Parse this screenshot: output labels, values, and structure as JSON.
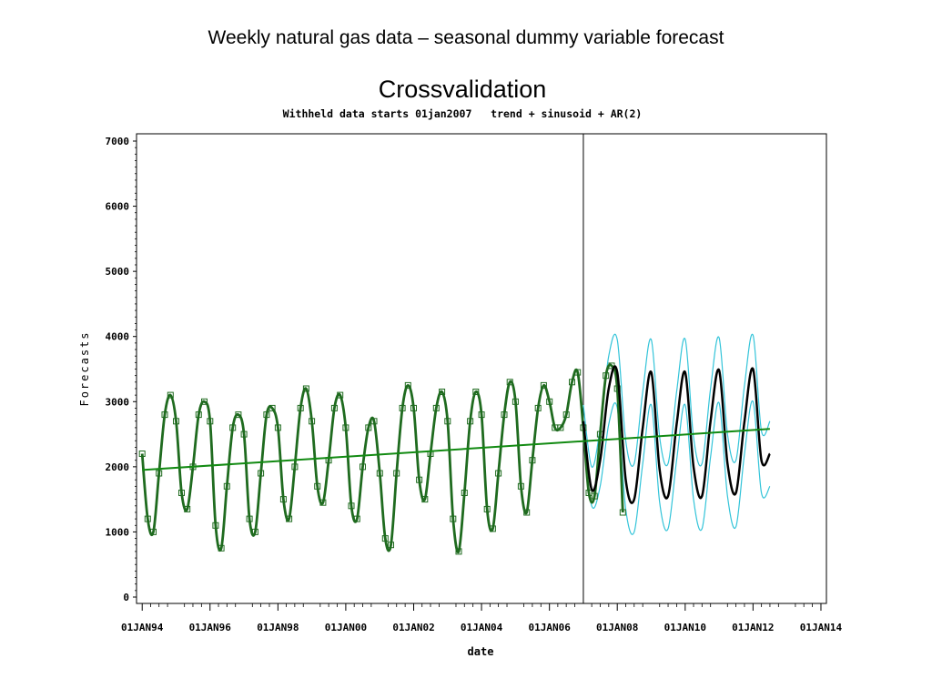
{
  "slide_title": "Weekly natural gas data – seasonal dummy variable forecast",
  "chart_data": {
    "type": "line",
    "title": "Crossvalidation",
    "subtitle": "Withheld data starts 01jan2007   trend + sinusoid + AR(2)",
    "xlabel": "date",
    "ylabel": "Forecasts",
    "x_ticks": [
      "01JAN94",
      "01JAN96",
      "01JAN98",
      "01JAN00",
      "01JAN02",
      "01JAN04",
      "01JAN06",
      "01JAN08",
      "01JAN10",
      "01JAN12",
      "01JAN14"
    ],
    "y_ticks": [
      0,
      1000,
      2000,
      3000,
      4000,
      5000,
      6000,
      7000
    ],
    "xlim": [
      "1993-11-01",
      "2014-03-01"
    ],
    "ylim": [
      0,
      7000
    ],
    "grid": false,
    "reference_line_x": "2007-01-01",
    "series": [
      {
        "role": "observed",
        "marker": "square",
        "color": "#1f6b1f",
        "x": [
          "1994-01-01",
          "1994-03-01",
          "1994-05-01",
          "1994-07-01",
          "1994-09-01",
          "1994-11-01",
          "1995-01-01",
          "1995-03-01",
          "1995-05-01",
          "1995-07-01",
          "1995-09-01",
          "1995-11-01",
          "1996-01-01",
          "1996-03-01",
          "1996-05-01",
          "1996-07-01",
          "1996-09-01",
          "1996-11-01",
          "1997-01-01",
          "1997-03-01",
          "1997-05-01",
          "1997-07-01",
          "1997-09-01",
          "1997-11-01",
          "1998-01-01",
          "1998-03-01",
          "1998-05-01",
          "1998-07-01",
          "1998-09-01",
          "1998-11-01",
          "1999-01-01",
          "1999-03-01",
          "1999-05-01",
          "1999-07-01",
          "1999-09-01",
          "1999-11-01",
          "2000-01-01",
          "2000-03-01",
          "2000-05-01",
          "2000-07-01",
          "2000-09-01",
          "2000-11-01",
          "2001-01-01",
          "2001-03-01",
          "2001-05-01",
          "2001-07-01",
          "2001-09-01",
          "2001-11-01",
          "2002-01-01",
          "2002-03-01",
          "2002-05-01",
          "2002-07-01",
          "2002-09-01",
          "2002-11-01",
          "2003-01-01",
          "2003-03-01",
          "2003-05-01",
          "2003-07-01",
          "2003-09-01",
          "2003-11-01",
          "2004-01-01",
          "2004-03-01",
          "2004-05-01",
          "2004-07-01",
          "2004-09-01",
          "2004-11-01",
          "2005-01-01",
          "2005-03-01",
          "2005-05-01",
          "2005-07-01",
          "2005-09-01",
          "2005-11-01",
          "2006-01-01",
          "2006-03-01",
          "2006-05-01",
          "2006-07-01",
          "2006-09-01",
          "2006-11-01",
          "2007-01-01",
          "2007-03-01",
          "2007-05-01",
          "2007-07-01",
          "2007-09-01",
          "2007-11-01",
          "2008-01-01",
          "2008-03-01"
        ],
        "y": [
          2200,
          1200,
          1000,
          1900,
          2800,
          3100,
          2700,
          1600,
          1350,
          2000,
          2800,
          3000,
          2700,
          1100,
          750,
          1700,
          2600,
          2800,
          2500,
          1200,
          1000,
          1900,
          2800,
          2900,
          2600,
          1500,
          1200,
          2000,
          2900,
          3200,
          2700,
          1700,
          1450,
          2100,
          2900,
          3100,
          2600,
          1400,
          1200,
          2000,
          2600,
          2700,
          1900,
          900,
          800,
          1900,
          2900,
          3250,
          2900,
          1800,
          1500,
          2200,
          2900,
          3150,
          2700,
          1200,
          700,
          1600,
          2700,
          3150,
          2800,
          1350,
          1050,
          1900,
          2800,
          3300,
          3000,
          1700,
          1300,
          2100,
          2900,
          3250,
          3000,
          2600,
          2600,
          2800,
          3300,
          3450,
          2600,
          1600,
          1550,
          2500,
          3400,
          3550,
          3200,
          1300
        ]
      },
      {
        "role": "trend",
        "color": "#128a12",
        "x": [
          "1994-01-01",
          "2012-07-01"
        ],
        "y": [
          1950,
          2580
        ]
      },
      {
        "role": "forecast",
        "color": "#000000",
        "x": [
          "2007-01-01",
          "2007-04-01",
          "2007-07-01",
          "2007-10-01",
          "2008-01-01",
          "2008-04-01",
          "2008-07-01",
          "2008-10-01",
          "2009-01-01",
          "2009-04-01",
          "2009-07-01",
          "2009-10-01",
          "2010-01-01",
          "2010-04-01",
          "2010-07-01",
          "2010-10-01",
          "2011-01-01",
          "2011-04-01",
          "2011-07-01",
          "2011-10-01",
          "2012-01-01",
          "2012-04-01",
          "2012-07-01"
        ],
        "y": [
          2700,
          1650,
          2100,
          3200,
          3450,
          1800,
          1500,
          2600,
          3450,
          1950,
          1550,
          2650,
          3450,
          2000,
          1550,
          2700,
          3480,
          2050,
          1600,
          2700,
          3500,
          2100,
          2200
        ]
      },
      {
        "role": "upper-limit",
        "color": "#33c4d9",
        "x": [
          "2007-01-01",
          "2007-04-01",
          "2007-07-01",
          "2007-10-01",
          "2008-01-01",
          "2008-04-01",
          "2008-07-01",
          "2008-10-01",
          "2009-01-01",
          "2009-04-01",
          "2009-07-01",
          "2009-10-01",
          "2010-01-01",
          "2010-04-01",
          "2010-07-01",
          "2010-10-01",
          "2011-01-01",
          "2011-04-01",
          "2011-07-01",
          "2011-10-01",
          "2012-01-01",
          "2012-04-01",
          "2012-07-01"
        ],
        "y": [
          2950,
          2000,
          2600,
          3700,
          3950,
          2400,
          2050,
          3150,
          3950,
          2450,
          2050,
          3150,
          3960,
          2450,
          2050,
          3200,
          3980,
          2500,
          2100,
          3250,
          4020,
          2550,
          2700
        ]
      },
      {
        "role": "lower-limit",
        "color": "#33c4d9",
        "x": [
          "2007-01-01",
          "2007-04-01",
          "2007-07-01",
          "2007-10-01",
          "2008-01-01",
          "2008-04-01",
          "2008-07-01",
          "2008-10-01",
          "2009-01-01",
          "2009-04-01",
          "2009-07-01",
          "2009-10-01",
          "2010-01-01",
          "2010-04-01",
          "2010-07-01",
          "2010-10-01",
          "2011-01-01",
          "2011-04-01",
          "2011-07-01",
          "2011-10-01",
          "2012-01-01",
          "2012-04-01",
          "2012-07-01"
        ],
        "y": [
          2450,
          1400,
          1700,
          2650,
          2900,
          1350,
          1000,
          2050,
          2950,
          1450,
          1050,
          2100,
          2950,
          1500,
          1050,
          2150,
          2980,
          1550,
          1080,
          2200,
          3000,
          1600,
          1700
        ]
      }
    ]
  }
}
